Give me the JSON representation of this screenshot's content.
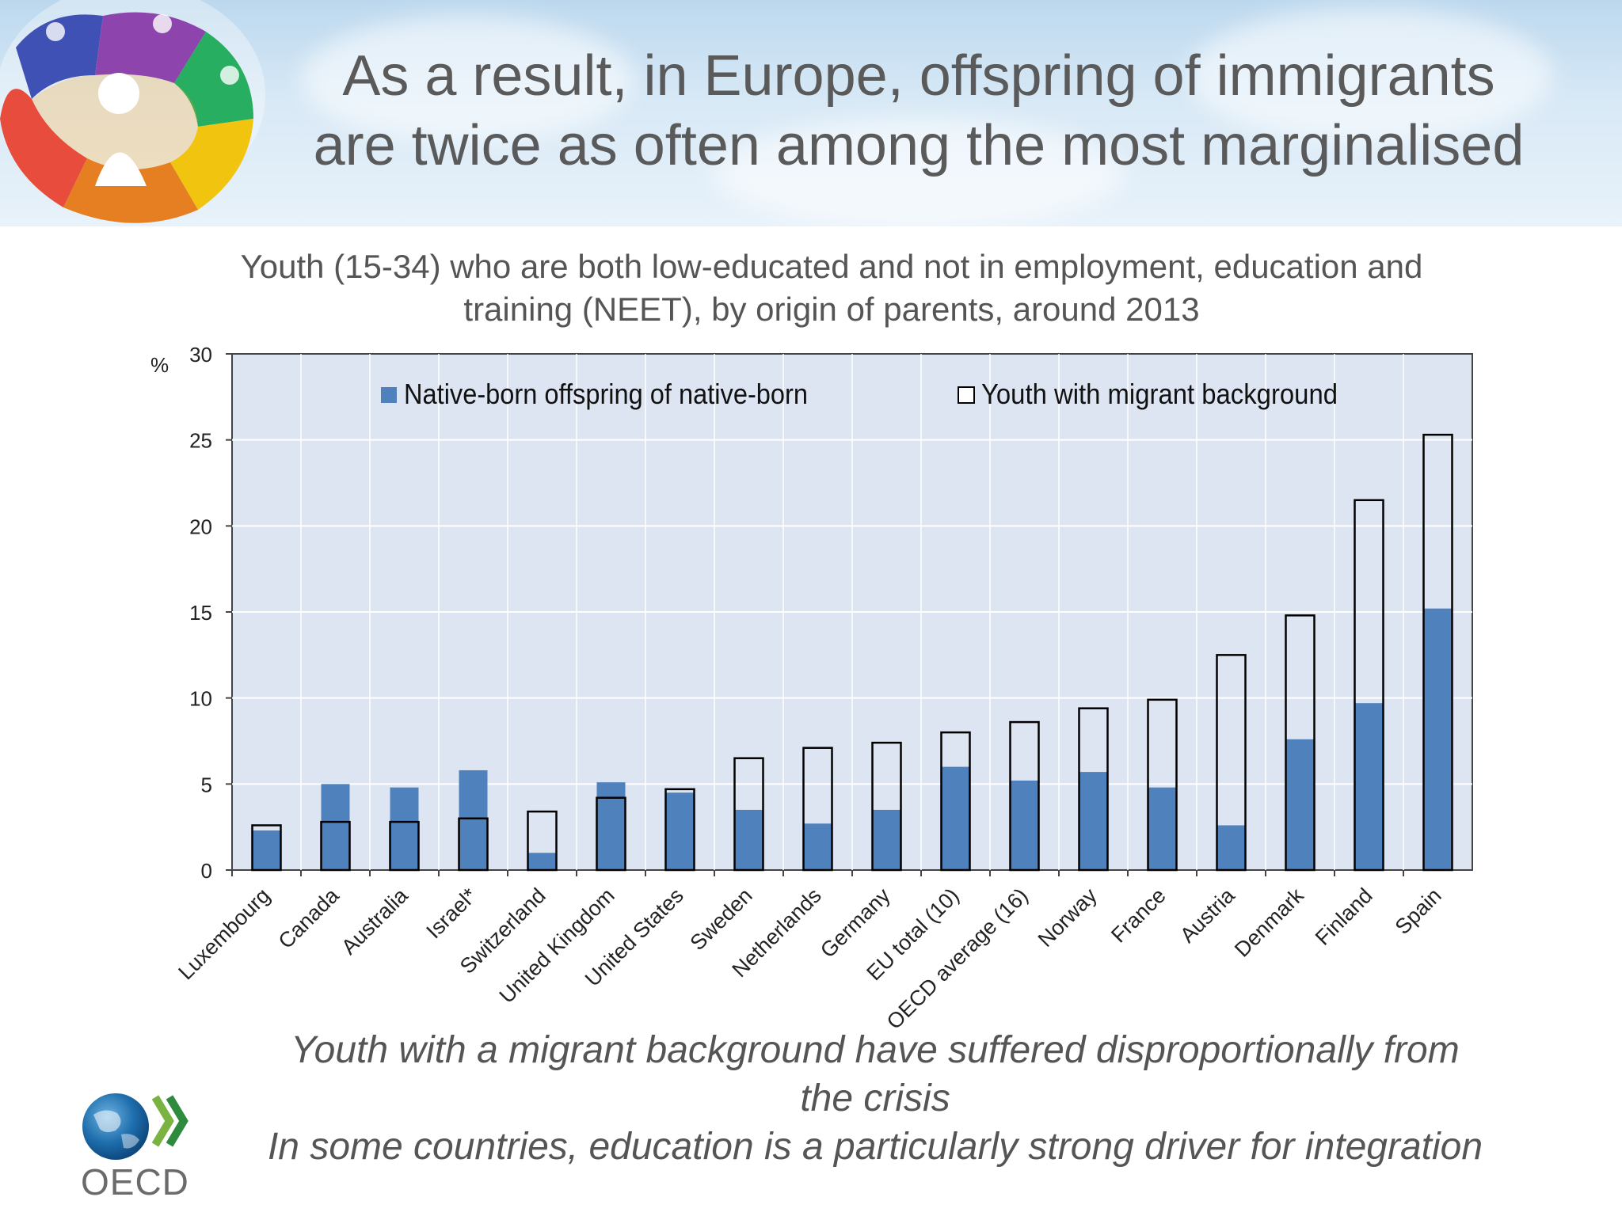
{
  "header": {
    "title_line1": "As a result, in Europe, offspring of immigrants",
    "title_line2": "are twice as often among the most marginalised"
  },
  "chart_data": {
    "type": "bar",
    "subtitle_line1": "Youth (15-34) who are both low-educated and not in employment, education and",
    "subtitle_line2": "training (NEET), by origin of parents, around 2013",
    "ylabel": "%",
    "ylim": [
      0,
      30
    ],
    "yticks": [
      0,
      5,
      10,
      15,
      20,
      25,
      30
    ],
    "grid": true,
    "legend_position": "top",
    "categories": [
      "Luxembourg",
      "Canada",
      "Australia",
      "Israel*",
      "Switzerland",
      "United Kingdom",
      "United States",
      "Sweden",
      "Netherlands",
      "Germany",
      "EU total (10)",
      "OECD average (16)",
      "Norway",
      "France",
      "Austria",
      "Denmark",
      "Finland",
      "Spain"
    ],
    "series": [
      {
        "name": "Native-born offspring of native-born",
        "style": "filled",
        "color": "#4f81bd",
        "values": [
          2.3,
          5.0,
          4.8,
          5.8,
          1.0,
          5.1,
          4.5,
          3.5,
          2.7,
          3.5,
          6.0,
          5.2,
          5.7,
          4.8,
          2.6,
          7.6,
          9.7,
          15.2
        ]
      },
      {
        "name": "Youth with migrant background",
        "style": "outline",
        "color": "#000000",
        "values": [
          2.6,
          2.8,
          2.8,
          3.0,
          3.4,
          4.2,
          4.7,
          6.5,
          7.1,
          7.4,
          8.0,
          8.6,
          9.4,
          9.9,
          12.5,
          14.8,
          21.5,
          25.3
        ]
      }
    ]
  },
  "conclusion": {
    "line1": "Youth with a migrant background have suffered disproportionally from",
    "line2": "the crisis",
    "line3": "In some countries, education is a particularly strong driver for integration"
  },
  "footer": {
    "org_name": "OECD",
    "logo_icon": "oecd-globe-icon"
  },
  "colors": {
    "plot_background": "#dde5f2",
    "native_bar": "#4f81bd",
    "migrant_outline": "#000000"
  }
}
